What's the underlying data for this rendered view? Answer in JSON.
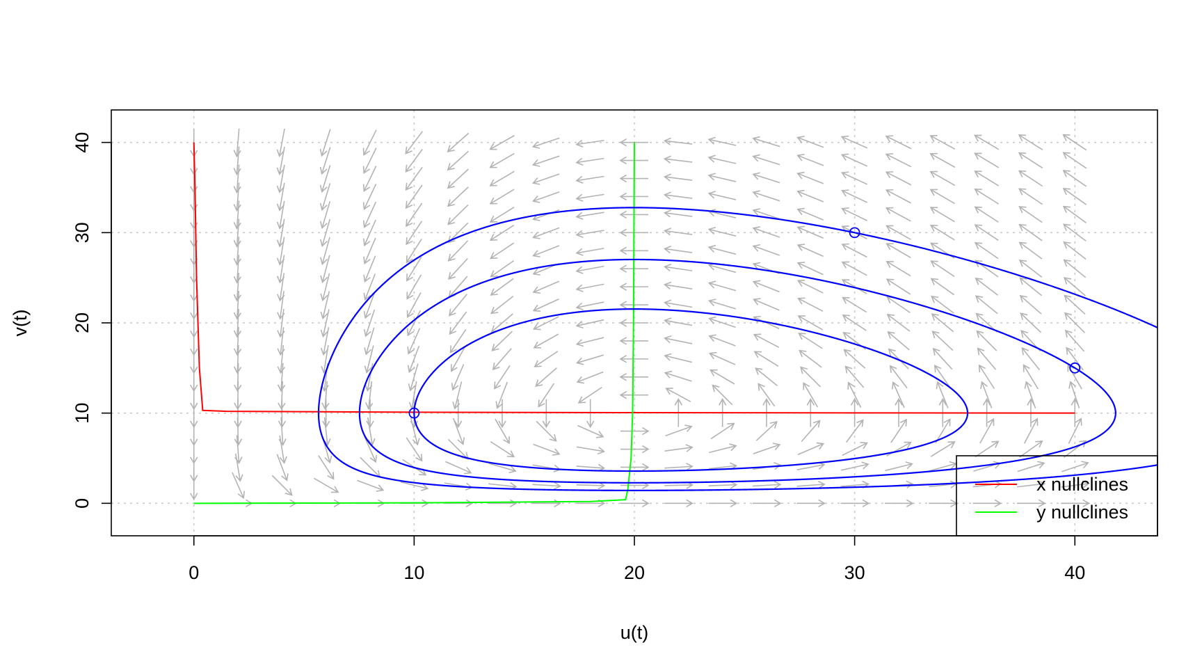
{
  "chart_data": {
    "type": "phase-portrait",
    "title": "",
    "xlabel": "u(t)",
    "ylabel": "v(t)",
    "xlim": [
      -3.75,
      43.75
    ],
    "ylim": [
      -3.6,
      43.6
    ],
    "xticks": [
      0,
      10,
      20,
      30,
      40
    ],
    "yticks": [
      0,
      10,
      20,
      30,
      40
    ],
    "grid": true,
    "vector_field": {
      "color": "#b3b3b3",
      "x_range": [
        0,
        40
      ],
      "y_range": [
        0,
        40
      ],
      "points_per_axis": 21,
      "model": {
        "a": 1,
        "b": 0.1,
        "c": 2,
        "d": 0.1
      },
      "arrows_visible": 441
    },
    "nullclines": [
      {
        "name": "x nullclines",
        "color": "#ff0000",
        "segments": [
          {
            "x": [
              0.0,
              0.05,
              0.12,
              0.25,
              0.4,
              1.5,
              10,
              20,
              30,
              40
            ],
            "y": [
              40,
              35,
              25,
              15,
              10.3,
              10.2,
              10.1,
              10.05,
              10.02,
              10
            ]
          }
        ]
      },
      {
        "name": "y nullclines",
        "color": "#00ff00",
        "segments": [
          {
            "x": [
              0,
              10,
              18,
              19.6,
              19.7,
              19.85,
              19.92,
              19.96,
              20.0
            ],
            "y": [
              0,
              0.05,
              0.2,
              0.4,
              1.5,
              5,
              10,
              20,
              40
            ]
          }
        ]
      }
    ],
    "trajectories": {
      "color": "#0000ff",
      "initial_points": [
        [
          10,
          10
        ],
        [
          40,
          15
        ],
        [
          30,
          30
        ]
      ]
    },
    "legend": {
      "position": "bottom-right",
      "items": [
        {
          "label": "x nullclines",
          "color": "#ff0000"
        },
        {
          "label": "y nullclines",
          "color": "#00ff00"
        }
      ]
    }
  }
}
